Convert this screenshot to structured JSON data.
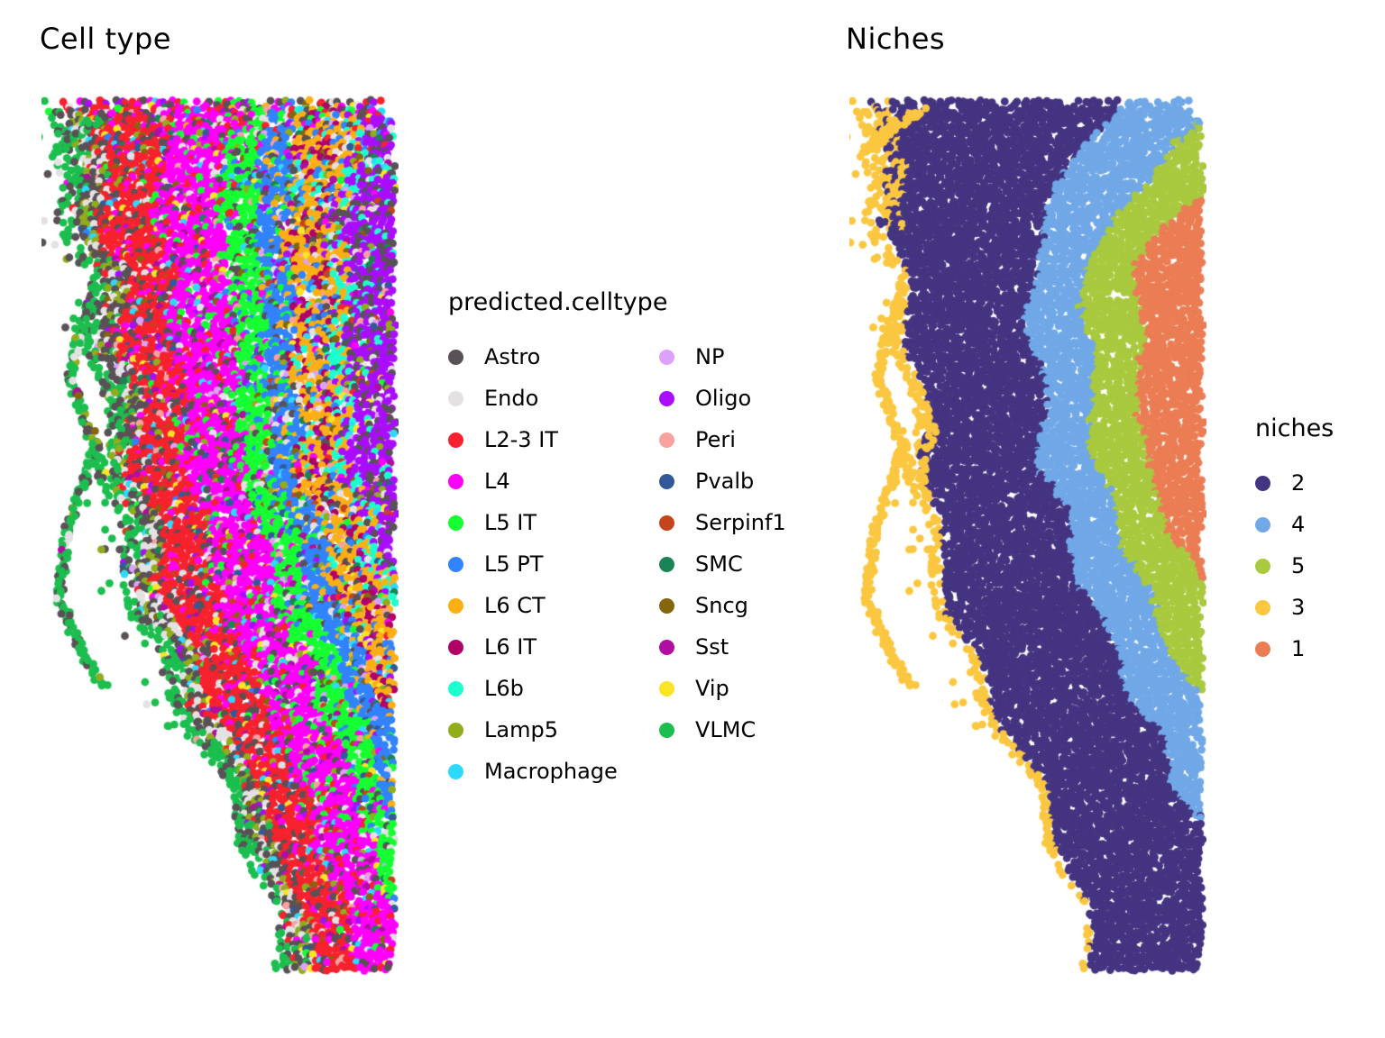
{
  "panels": {
    "celltype": {
      "title": "Cell type"
    },
    "niches": {
      "title": "Niches"
    }
  },
  "legends": {
    "celltype": {
      "title": "predicted.celltype",
      "entries": [
        {
          "label": "Astro",
          "color": "#5A5156"
        },
        {
          "label": "Endo",
          "color": "#E4E1E3"
        },
        {
          "label": "L2-3 IT",
          "color": "#F6222E"
        },
        {
          "label": "L4",
          "color": "#FE00FA"
        },
        {
          "label": "L5 IT",
          "color": "#16FF32"
        },
        {
          "label": "L5 PT",
          "color": "#3283FE"
        },
        {
          "label": "L6 CT",
          "color": "#FEAF16"
        },
        {
          "label": "L6 IT",
          "color": "#B00068"
        },
        {
          "label": "L6b",
          "color": "#1CFFCE"
        },
        {
          "label": "Lamp5",
          "color": "#90AD1C"
        },
        {
          "label": "Macrophage",
          "color": "#2ED9FF"
        },
        {
          "label": "NP",
          "color": "#DEA0FD"
        },
        {
          "label": "Oligo",
          "color": "#AA0DFE"
        },
        {
          "label": "Peri",
          "color": "#F8A19F"
        },
        {
          "label": "Pvalb",
          "color": "#325A9B"
        },
        {
          "label": "Serpinf1",
          "color": "#C4451C"
        },
        {
          "label": "SMC",
          "color": "#1C8356"
        },
        {
          "label": "Sncg",
          "color": "#85660D"
        },
        {
          "label": "Sst",
          "color": "#B10DA1"
        },
        {
          "label": "Vip",
          "color": "#FBE426"
        },
        {
          "label": "VLMC",
          "color": "#1CBE4F"
        }
      ]
    },
    "niches": {
      "title": "niches",
      "entries": [
        {
          "label": "2",
          "color": "#453481"
        },
        {
          "label": "4",
          "color": "#71A8E7"
        },
        {
          "label": "5",
          "color": "#A9C93F"
        },
        {
          "label": "3",
          "color": "#FBC740"
        },
        {
          "label": "1",
          "color": "#EB7D54"
        }
      ]
    }
  },
  "chart_data": [
    {
      "type": "scatter",
      "panel": "celltype",
      "title": "Cell type",
      "legend_title": "predicted.celltype",
      "legend_position": "right",
      "axes_visible": false,
      "description": "Spatial plot of a cortical tissue section; each dot is one cell at its tissue x/y position, colored by predicted cell type. Cortical layers run as curved bands from the pial surface (lower-left/outer edge) to white matter (upper-right/inner edge). Sparse VLMC/Astro strands trail off the outer surface.",
      "categories": [
        "Astro",
        "Endo",
        "L2-3 IT",
        "L4",
        "L5 IT",
        "L5 PT",
        "L6 CT",
        "L6 IT",
        "L6b",
        "Lamp5",
        "Macrophage",
        "NP",
        "Oligo",
        "Peri",
        "Pvalb",
        "Serpinf1",
        "SMC",
        "Sncg",
        "Sst",
        "Vip",
        "VLMC"
      ],
      "spatial_layers_outer_to_inner": [
        {
          "depth": [
            0.0,
            0.045
          ],
          "dominant": [
            "VLMC",
            "Astro"
          ]
        },
        {
          "depth": [
            0.045,
            0.115
          ],
          "dominant": [
            "Astro",
            "Endo",
            "Lamp5"
          ]
        },
        {
          "depth": [
            0.115,
            0.28
          ],
          "dominant": [
            "L2-3 IT"
          ]
        },
        {
          "depth": [
            0.28,
            0.47
          ],
          "dominant": [
            "L4"
          ]
        },
        {
          "depth": [
            0.47,
            0.575
          ],
          "dominant": [
            "L5 IT"
          ]
        },
        {
          "depth": [
            0.575,
            0.665
          ],
          "dominant": [
            "L5 PT"
          ]
        },
        {
          "depth": [
            0.665,
            0.795
          ],
          "dominant": [
            "L6 CT",
            "L6 IT"
          ]
        },
        {
          "depth": [
            0.795,
            0.855
          ],
          "dominant": [
            "L6b",
            "L6 CT",
            "Oligo"
          ]
        },
        {
          "depth": [
            0.855,
            1.0
          ],
          "dominant": [
            "Oligo",
            "Astro"
          ]
        }
      ]
    },
    {
      "type": "scatter",
      "panel": "niches",
      "title": "Niches",
      "legend_title": "niches",
      "legend_position": "right",
      "axes_visible": false,
      "description": "Same tissue section and cell positions, colored by spatial niche. Yellow niche 3 traces the outer pial surface, dark purple niche 2 forms the large outer band, then nested bands of niche 4 (blue), niche 5 (green) and niche 1 (salmon) toward the upper right; deeper niches terminate progressively higher along the section.",
      "categories": [
        "2",
        "4",
        "5",
        "3",
        "1"
      ],
      "spatial_bands_outer_to_inner": [
        {
          "niche": "3",
          "depth": [
            0.0,
            0.035
          ]
        },
        {
          "niche": "2",
          "depth": [
            0.035,
            0.45
          ]
        },
        {
          "niche": "4",
          "depth": [
            0.45,
            0.625
          ]
        },
        {
          "niche": "5",
          "depth": [
            0.625,
            0.795
          ]
        },
        {
          "niche": "1",
          "depth": [
            0.795,
            1.0
          ]
        }
      ]
    }
  ]
}
